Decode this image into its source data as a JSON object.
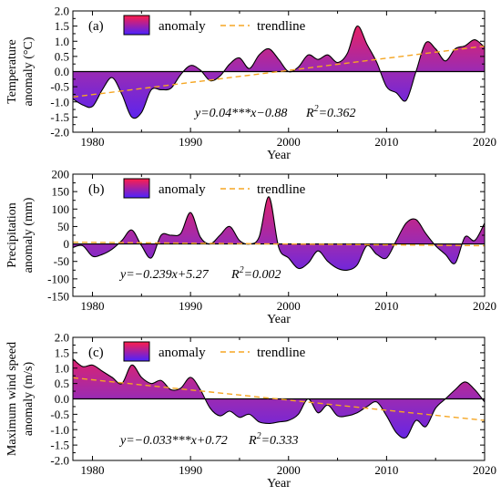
{
  "figure": {
    "legend_labels": {
      "anomaly": "anomaly",
      "trendline": "trendline"
    },
    "colors": {
      "high": "#ff1e4a",
      "low": "#4a22ff",
      "trend": "#f5a623",
      "zero": "#000000"
    }
  },
  "chart_data": [
    {
      "type": "area",
      "panel_label": "(a)",
      "ylabel": [
        "Temperature",
        "anomaly (°C)"
      ],
      "xlabel": "Year",
      "xlim": [
        1978,
        2020
      ],
      "ylim": [
        -2.0,
        2.0
      ],
      "xticks": [
        1980,
        1990,
        2000,
        2010,
        2020
      ],
      "yticks": [
        -2.0,
        -1.5,
        -1.0,
        -0.5,
        0.0,
        0.5,
        1.0,
        1.5,
        2.0
      ],
      "ytick_labels": [
        "-2.0",
        "-1.5",
        "-1.0",
        "-0.5",
        "0.0",
        "0.5",
        "1.0",
        "1.5",
        "2.0"
      ],
      "equation": "y=0.04***x−0.88",
      "r2_label": "R",
      "r2_value": "=0.362",
      "trend": {
        "slope": 0.04,
        "intercept": -0.88,
        "start_year": 1978
      },
      "x": [
        1978,
        1979,
        1980,
        1981,
        1982,
        1983,
        1984,
        1985,
        1986,
        1987,
        1988,
        1989,
        1990,
        1991,
        1992,
        1993,
        1994,
        1995,
        1996,
        1997,
        1998,
        1999,
        2000,
        2001,
        2002,
        2003,
        2004,
        2005,
        2006,
        2007,
        2008,
        2009,
        2010,
        2011,
        2012,
        2013,
        2014,
        2015,
        2016,
        2017,
        2018,
        2019,
        2020
      ],
      "values": [
        -0.9,
        -1.1,
        -1.15,
        -0.6,
        -0.2,
        -0.75,
        -1.5,
        -1.35,
        -0.6,
        -0.6,
        -0.55,
        -0.1,
        0.2,
        0.05,
        -0.3,
        -0.15,
        0.25,
        0.45,
        0.1,
        0.55,
        0.75,
        0.4,
        0.0,
        0.15,
        0.55,
        0.4,
        0.55,
        0.3,
        0.6,
        1.5,
        0.9,
        0.3,
        -0.5,
        -0.7,
        -0.95,
        0.0,
        0.95,
        0.75,
        0.35,
        0.75,
        0.85,
        1.05,
        0.8
      ]
    },
    {
      "type": "area",
      "panel_label": "(b)",
      "ylabel": [
        "Precipitation",
        "anomaly (mm)"
      ],
      "xlabel": "Year",
      "xlim": [
        1978,
        2020
      ],
      "ylim": [
        -150,
        200
      ],
      "xticks": [
        1980,
        1990,
        2000,
        2010,
        2020
      ],
      "yticks": [
        -150,
        -100,
        -50,
        0,
        50,
        100,
        150,
        200
      ],
      "ytick_labels": [
        "-150",
        "-100",
        "-50",
        "0",
        "50",
        "100",
        "150",
        "200"
      ],
      "equation": "y=−0.239x+5.27",
      "r2_label": "R",
      "r2_value": "=0.002",
      "trend": {
        "slope": -0.239,
        "intercept": 5.27,
        "start_year": 1978
      },
      "x": [
        1978,
        1979,
        1980,
        1981,
        1982,
        1983,
        1984,
        1985,
        1986,
        1987,
        1988,
        1989,
        1990,
        1991,
        1992,
        1993,
        1994,
        1995,
        1996,
        1997,
        1998,
        1999,
        2000,
        2001,
        2002,
        2003,
        2004,
        2005,
        2006,
        2007,
        2008,
        2009,
        2010,
        2011,
        2012,
        2013,
        2014,
        2015,
        2016,
        2017,
        2018,
        2019,
        2020
      ],
      "values": [
        -10,
        -5,
        -35,
        -30,
        -15,
        10,
        40,
        -5,
        -40,
        25,
        25,
        30,
        90,
        20,
        0,
        25,
        50,
        10,
        0,
        20,
        135,
        -10,
        -40,
        -70,
        -55,
        -20,
        -50,
        -70,
        -75,
        -60,
        -5,
        -30,
        -40,
        10,
        60,
        70,
        30,
        -5,
        -30,
        -55,
        20,
        10,
        60
      ]
    },
    {
      "type": "area",
      "panel_label": "(c)",
      "ylabel": [
        "Maximum wind speed",
        "anomaly (m/s)"
      ],
      "xlabel": "Year",
      "xlim": [
        1978,
        2020
      ],
      "ylim": [
        -2.0,
        2.0
      ],
      "xticks": [
        1980,
        1990,
        2000,
        2010,
        2020
      ],
      "yticks": [
        -2.0,
        -1.5,
        -1.0,
        -0.5,
        0.0,
        0.5,
        1.0,
        1.5,
        2.0
      ],
      "ytick_labels": [
        "-2.0",
        "-1.5",
        "-1.0",
        "-0.5",
        "0.0",
        "0.5",
        "1.0",
        "1.5",
        "2.0"
      ],
      "equation": "y=−0.033***x+0.72",
      "r2_label": "R",
      "r2_value": "=0.333",
      "trend": {
        "slope": -0.033,
        "intercept": 0.72,
        "start_year": 1978
      },
      "x": [
        1978,
        1979,
        1980,
        1981,
        1982,
        1983,
        1984,
        1985,
        1986,
        1987,
        1988,
        1989,
        1990,
        1991,
        1992,
        1993,
        1994,
        1995,
        1996,
        1997,
        1998,
        1999,
        2000,
        2001,
        2002,
        2003,
        2004,
        2005,
        2006,
        2007,
        2008,
        2009,
        2010,
        2011,
        2012,
        2013,
        2014,
        2015,
        2016,
        2017,
        2018,
        2019,
        2020
      ],
      "values": [
        1.3,
        1.05,
        1.1,
        0.9,
        0.7,
        0.5,
        1.1,
        0.7,
        0.5,
        0.6,
        0.3,
        0.35,
        0.7,
        0.3,
        -0.3,
        -0.55,
        -0.4,
        -0.6,
        -0.5,
        -0.75,
        -0.8,
        -0.75,
        -0.7,
        -0.5,
        0.0,
        -0.45,
        -0.2,
        -0.55,
        -0.55,
        -0.45,
        -0.25,
        -0.1,
        -0.55,
        -1.1,
        -1.25,
        -0.7,
        -0.9,
        -0.3,
        0.0,
        0.3,
        0.55,
        0.3,
        -0.1
      ]
    }
  ]
}
